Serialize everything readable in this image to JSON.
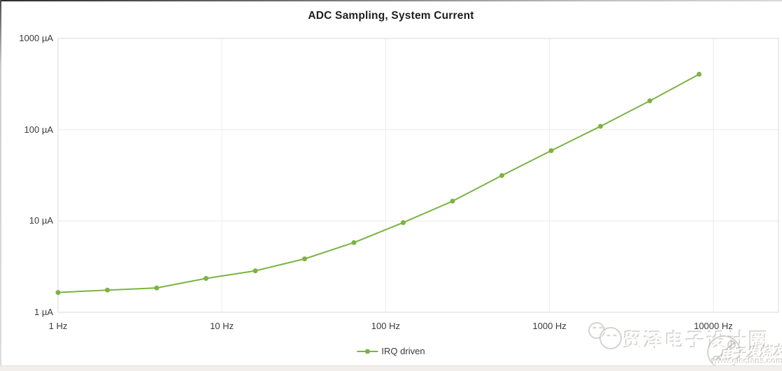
{
  "page": {
    "title": "ADC Sampling, System Current"
  },
  "chart_data": {
    "type": "line",
    "title": "ADC Sampling, System Current",
    "x_scale": "log",
    "y_scale": "log",
    "xlim": [
      1,
      25000
    ],
    "ylim": [
      1,
      1000
    ],
    "grid": true,
    "legend_position": "bottom",
    "xlabel": "",
    "ylabel": "",
    "x": [
      1,
      2,
      4,
      8,
      16,
      32,
      64,
      128,
      256,
      512,
      1024,
      2048,
      4096,
      8192
    ],
    "series": [
      {
        "name": "IRQ driven",
        "color": "#7cb342",
        "values": [
          1.65,
          1.75,
          1.85,
          2.35,
          2.85,
          3.85,
          5.8,
          9.6,
          16.5,
          31.5,
          59,
          109,
          207,
          405
        ]
      }
    ],
    "x_ticks": [
      {
        "value": 1,
        "label": "1 Hz"
      },
      {
        "value": 10,
        "label": "10 Hz"
      },
      {
        "value": 100,
        "label": "100 Hz"
      },
      {
        "value": 1000,
        "label": "1000 Hz"
      },
      {
        "value": 10000,
        "label": "10000 Hz"
      }
    ],
    "y_ticks": [
      {
        "value": 1,
        "label": "1 µA"
      },
      {
        "value": 10,
        "label": "10 µA"
      },
      {
        "value": 100,
        "label": "100 µA"
      },
      {
        "value": 1000,
        "label": "1000 µA"
      }
    ]
  },
  "legend": {
    "items": [
      {
        "label": "IRQ driven",
        "color": "#7cb342"
      }
    ]
  },
  "watermark": {
    "brand_text": "贸泽电子设计圈",
    "sub_brand_text": "电子发烧友",
    "url_text": "www.elecfans.com"
  },
  "colors": {
    "series_green": "#7cb342",
    "grid": "#ececec",
    "axis_border": "#d8d8d8",
    "text": "#3a3a3a",
    "title_text": "#1e1e1e"
  }
}
